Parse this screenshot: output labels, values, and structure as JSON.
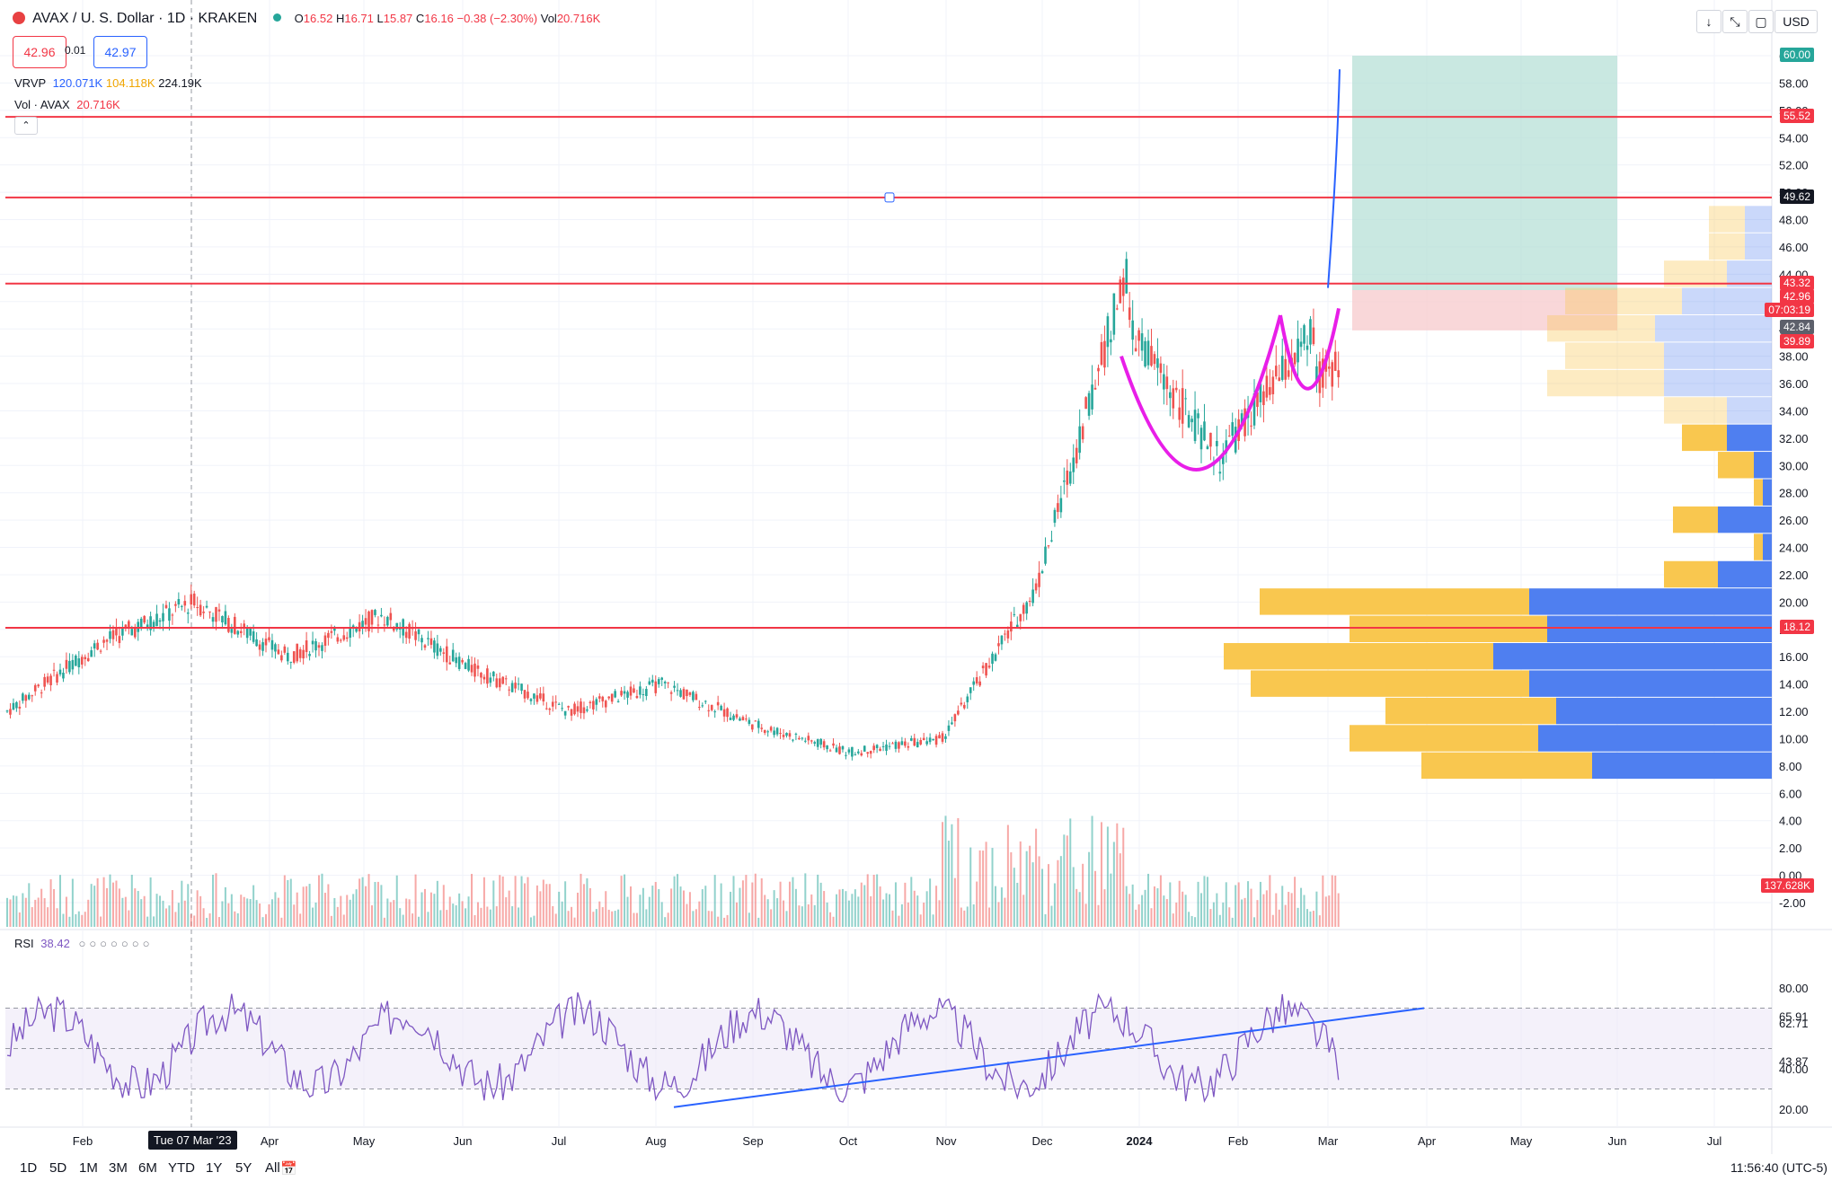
{
  "header": {
    "symbol": "AVAX / U. S. Dollar · 1D · KRAKEN",
    "open_label": "O",
    "open": "16.52",
    "high_label": "H",
    "high": "16.71",
    "low_label": "L",
    "low": "15.87",
    "close_label": "C",
    "close": "16.16",
    "change": "−0.38 (−2.30%)",
    "vol_label": "Vol",
    "vol": "20.716K",
    "sell_price": "42.96",
    "spread": "0.01",
    "buy_price": "42.97",
    "currency": "USD",
    "vrvp_label": "VRVP",
    "vrvp_up": "120.071K",
    "vrvp_down": "104.118K",
    "vrvp_total": "224.19K",
    "volume_label": "Vol · AVAX",
    "volume_value": "20.716K",
    "rsi_label": "RSI",
    "rsi_value": "38.42"
  },
  "colors": {
    "up": "#26a69a",
    "down": "#ef5350",
    "hline": "#f23645",
    "cup": "#e81ee8",
    "trend": "#2962ff",
    "vp_up": "#4f7ff0",
    "vp_down": "#f9c74f",
    "rsi": "#7e57c2",
    "long_target": "#b2ded4",
    "long_stop": "#f8cdd0"
  },
  "price_axis": [
    "60.00",
    "58.00",
    "56.00",
    "54.00",
    "52.00",
    "50.00",
    "48.00",
    "46.00",
    "44.00",
    "42.00",
    "40.00",
    "38.00",
    "36.00",
    "34.00",
    "32.00",
    "30.00",
    "28.00",
    "26.00",
    "24.00",
    "22.00",
    "20.00",
    "18.00",
    "16.00",
    "14.00",
    "12.00",
    "10.00",
    "8.00",
    "6.00",
    "4.00",
    "2.00",
    "0.00",
    "-2.00"
  ],
  "price_tags": [
    {
      "value": "60.00",
      "color": "#26a69a"
    },
    {
      "value": "55.52",
      "color": "#f23645"
    },
    {
      "value": "49.62",
      "color": "#131722"
    },
    {
      "value": "43.32",
      "color": "#f23645"
    },
    {
      "value": "42.96",
      "color": "#f23645"
    },
    {
      "value": "07:03:19",
      "color": "#f23645"
    },
    {
      "value": "42.84",
      "color": "#5d606b"
    },
    {
      "value": "39.89",
      "color": "#f23645"
    },
    {
      "value": "18.12",
      "color": "#f23645"
    },
    {
      "value": "137.628K",
      "color": "#f23645"
    }
  ],
  "rsi_axis": [
    "80.00",
    "65.91",
    "62.71",
    "43.87",
    "40.00",
    "20.00"
  ],
  "time_axis": [
    "Feb",
    "Apr",
    "May",
    "Jun",
    "Jul",
    "Aug",
    "Sep",
    "Oct",
    "Nov",
    "Dec",
    "2024",
    "Feb",
    "Mar",
    "Apr",
    "May",
    "Jun",
    "Jul"
  ],
  "crosshair_date": "Tue 07 Mar '23",
  "timeframes": [
    "1D",
    "5D",
    "1M",
    "3M",
    "6M",
    "YTD",
    "1Y",
    "5Y",
    "All"
  ],
  "clock": "11:56:40 (UTC-5)",
  "chart_data": {
    "type": "candlestick",
    "series": [
      {
        "month": "Jan 2023",
        "start": 12,
        "end": 17
      },
      {
        "month": "Feb 2023",
        "start": 17,
        "end": 20
      },
      {
        "month": "Mar 2023",
        "start": 20,
        "end": 16
      },
      {
        "month": "Apr 2023",
        "start": 16,
        "end": 19
      },
      {
        "month": "May 2023",
        "start": 19,
        "end": 15
      },
      {
        "month": "Jun 2023",
        "start": 15,
        "end": 12
      },
      {
        "month": "Jul 2023",
        "start": 12,
        "end": 14
      },
      {
        "month": "Aug 2023",
        "start": 14,
        "end": 11
      },
      {
        "month": "Sep 2023",
        "start": 11,
        "end": 9
      },
      {
        "month": "Oct 2023",
        "start": 9,
        "end": 10
      },
      {
        "month": "Nov 2023",
        "start": 10,
        "end": 21
      },
      {
        "month": "Dec 2023",
        "start": 21,
        "end": 45
      },
      {
        "month": "Jan 2024",
        "start": 40,
        "end": 30
      },
      {
        "month": "Feb 2024",
        "start": 31,
        "end": 40
      },
      {
        "month": "Mar 2024",
        "start": 36,
        "end": 43
      }
    ],
    "horizontal_lines": [
      55.52,
      49.62,
      43.32,
      18.12
    ],
    "long_position": {
      "entry": 42.84,
      "target": 60.0,
      "stop": 39.89
    },
    "volume_profile": [
      {
        "price": 48,
        "up": 3,
        "down": 4
      },
      {
        "price": 46,
        "up": 3,
        "down": 4
      },
      {
        "price": 44,
        "up": 5,
        "down": 7
      },
      {
        "price": 42,
        "up": 10,
        "down": 13
      },
      {
        "price": 40,
        "up": 13,
        "down": 12
      },
      {
        "price": 38,
        "up": 12,
        "down": 11
      },
      {
        "price": 36,
        "up": 12,
        "down": 13
      },
      {
        "price": 34,
        "up": 5,
        "down": 7
      },
      {
        "price": 32,
        "up": 5,
        "down": 5
      },
      {
        "price": 30,
        "up": 2,
        "down": 4
      },
      {
        "price": 28,
        "up": 1,
        "down": 1
      },
      {
        "price": 26,
        "up": 6,
        "down": 5
      },
      {
        "price": 24,
        "up": 1,
        "down": 1
      },
      {
        "price": 22,
        "up": 6,
        "down": 6
      },
      {
        "price": 20,
        "up": 27,
        "down": 30
      },
      {
        "price": 18,
        "up": 25,
        "down": 22
      },
      {
        "price": 16,
        "up": 31,
        "down": 30
      },
      {
        "price": 14,
        "up": 27,
        "down": 31
      },
      {
        "price": 12,
        "up": 24,
        "down": 19
      },
      {
        "price": 10,
        "up": 26,
        "down": 21
      },
      {
        "price": 8,
        "up": 20,
        "down": 19
      }
    ],
    "rsi_levels": [
      70,
      50,
      30
    ]
  }
}
